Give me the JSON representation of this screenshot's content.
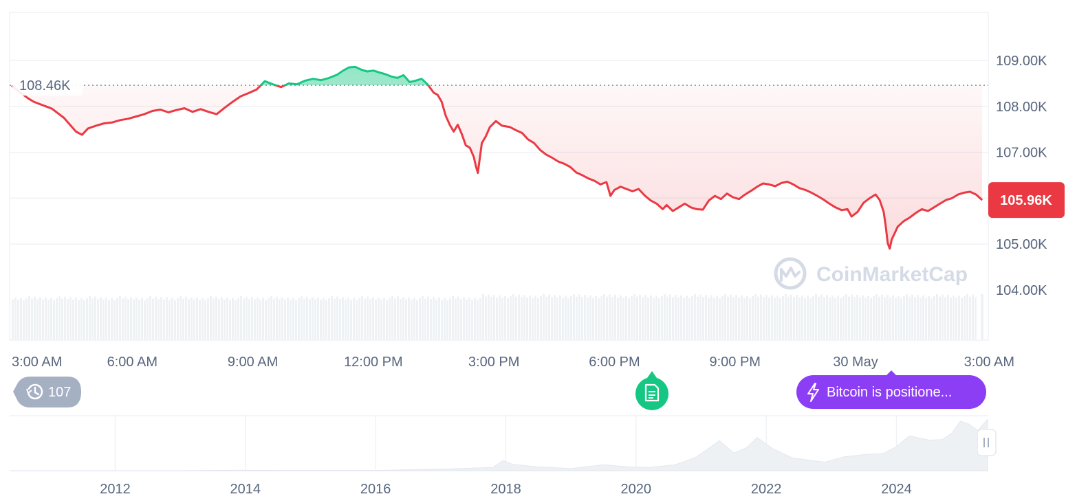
{
  "chart_data": {
    "type": "line",
    "y_axis": {
      "ticks": [
        "109.00K",
        "108.00K",
        "107.00K",
        "106.00K",
        "105.00K",
        "104.00K"
      ],
      "tick_values": [
        109000,
        108000,
        107000,
        106000,
        105000,
        104000
      ],
      "range": [
        103000,
        110000
      ],
      "position": "right"
    },
    "x_axis": {
      "ticks": [
        "3:00 AM",
        "6:00 AM",
        "9:00 AM",
        "12:00 PM",
        "3:00 PM",
        "6:00 PM",
        "9:00 PM",
        "30 May",
        "3:00 AM"
      ],
      "tick_hours": [
        0,
        3,
        6,
        9,
        12,
        15,
        18,
        21,
        24
      ],
      "range_hours": [
        0,
        24.2
      ]
    },
    "reference": {
      "label": "108.46K",
      "value": 108460
    },
    "current": {
      "label": "105.96K",
      "value": 105960
    },
    "colors": {
      "up": "#16c784",
      "down": "#ea3943",
      "grid": "#eff2f5",
      "volume": "#eff2f5",
      "history_badge": "#a6b0c3",
      "news_badge": "#16c784",
      "alert_pill": "#8c3ef5",
      "current_badge": "#ea3943"
    },
    "series": [
      {
        "points": [
          [
            0,
            108450
          ],
          [
            0.1,
            108380
          ],
          [
            0.25,
            108280
          ],
          [
            0.4,
            108180
          ],
          [
            0.55,
            108100
          ],
          [
            0.7,
            108050
          ],
          [
            0.85,
            108000
          ],
          [
            1.0,
            107950
          ],
          [
            1.15,
            107850
          ],
          [
            1.3,
            107750
          ],
          [
            1.45,
            107600
          ],
          [
            1.6,
            107450
          ],
          [
            1.75,
            107380
          ],
          [
            1.9,
            107520
          ],
          [
            2.1,
            107580
          ],
          [
            2.3,
            107630
          ],
          [
            2.5,
            107650
          ],
          [
            2.7,
            107700
          ],
          [
            2.9,
            107730
          ],
          [
            3.1,
            107780
          ],
          [
            3.3,
            107830
          ],
          [
            3.5,
            107900
          ],
          [
            3.7,
            107930
          ],
          [
            3.9,
            107870
          ],
          [
            4.1,
            107920
          ],
          [
            4.3,
            107960
          ],
          [
            4.5,
            107880
          ],
          [
            4.7,
            107940
          ],
          [
            4.9,
            107880
          ],
          [
            5.1,
            107830
          ],
          [
            5.3,
            107970
          ],
          [
            5.5,
            108100
          ],
          [
            5.7,
            108220
          ],
          [
            5.9,
            108290
          ],
          [
            6.1,
            108370
          ],
          [
            6.3,
            108550
          ],
          [
            6.5,
            108480
          ],
          [
            6.7,
            108420
          ],
          [
            6.9,
            108500
          ],
          [
            7.1,
            108480
          ],
          [
            7.3,
            108560
          ],
          [
            7.5,
            108600
          ],
          [
            7.7,
            108570
          ],
          [
            7.9,
            108620
          ],
          [
            8.1,
            108690
          ],
          [
            8.25,
            108780
          ],
          [
            8.4,
            108850
          ],
          [
            8.55,
            108860
          ],
          [
            8.7,
            108800
          ],
          [
            8.85,
            108760
          ],
          [
            9.0,
            108780
          ],
          [
            9.15,
            108740
          ],
          [
            9.3,
            108700
          ],
          [
            9.45,
            108650
          ],
          [
            9.6,
            108620
          ],
          [
            9.75,
            108680
          ],
          [
            9.9,
            108530
          ],
          [
            10.05,
            108560
          ],
          [
            10.2,
            108600
          ],
          [
            10.35,
            108480
          ],
          [
            10.5,
            108300
          ],
          [
            10.6,
            108250
          ],
          [
            10.7,
            108100
          ],
          [
            10.8,
            107800
          ],
          [
            10.9,
            107600
          ],
          [
            11.0,
            107450
          ],
          [
            11.1,
            107600
          ],
          [
            11.2,
            107400
          ],
          [
            11.3,
            107150
          ],
          [
            11.4,
            107100
          ],
          [
            11.5,
            106900
          ],
          [
            11.55,
            106700
          ],
          [
            11.6,
            106550
          ],
          [
            11.7,
            107200
          ],
          [
            11.8,
            107350
          ],
          [
            11.9,
            107550
          ],
          [
            12.05,
            107680
          ],
          [
            12.2,
            107580
          ],
          [
            12.4,
            107550
          ],
          [
            12.55,
            107480
          ],
          [
            12.7,
            107420
          ],
          [
            12.85,
            107280
          ],
          [
            13.0,
            107200
          ],
          [
            13.15,
            107050
          ],
          [
            13.3,
            106950
          ],
          [
            13.45,
            106880
          ],
          [
            13.6,
            106800
          ],
          [
            13.75,
            106750
          ],
          [
            13.9,
            106680
          ],
          [
            14.05,
            106560
          ],
          [
            14.2,
            106500
          ],
          [
            14.35,
            106430
          ],
          [
            14.5,
            106380
          ],
          [
            14.65,
            106300
          ],
          [
            14.8,
            106350
          ],
          [
            14.9,
            106050
          ],
          [
            15.0,
            106180
          ],
          [
            15.15,
            106250
          ],
          [
            15.3,
            106200
          ],
          [
            15.45,
            106150
          ],
          [
            15.6,
            106200
          ],
          [
            15.75,
            106060
          ],
          [
            15.9,
            105950
          ],
          [
            16.05,
            105880
          ],
          [
            16.2,
            105760
          ],
          [
            16.3,
            105850
          ],
          [
            16.45,
            105720
          ],
          [
            16.6,
            105800
          ],
          [
            16.75,
            105880
          ],
          [
            16.9,
            105800
          ],
          [
            17.05,
            105760
          ],
          [
            17.2,
            105750
          ],
          [
            17.35,
            105950
          ],
          [
            17.5,
            106050
          ],
          [
            17.65,
            105980
          ],
          [
            17.8,
            106100
          ],
          [
            17.95,
            106020
          ],
          [
            18.1,
            105980
          ],
          [
            18.25,
            106080
          ],
          [
            18.4,
            106160
          ],
          [
            18.55,
            106250
          ],
          [
            18.7,
            106320
          ],
          [
            18.85,
            106300
          ],
          [
            19.0,
            106260
          ],
          [
            19.15,
            106330
          ],
          [
            19.3,
            106360
          ],
          [
            19.45,
            106300
          ],
          [
            19.6,
            106220
          ],
          [
            19.75,
            106180
          ],
          [
            19.9,
            106120
          ],
          [
            20.05,
            106050
          ],
          [
            20.2,
            105970
          ],
          [
            20.35,
            105880
          ],
          [
            20.5,
            105800
          ],
          [
            20.65,
            105740
          ],
          [
            20.8,
            105760
          ],
          [
            20.9,
            105600
          ],
          [
            21.05,
            105700
          ],
          [
            21.2,
            105900
          ],
          [
            21.35,
            106000
          ],
          [
            21.5,
            106080
          ],
          [
            21.6,
            105960
          ],
          [
            21.7,
            105700
          ],
          [
            21.75,
            105400
          ],
          [
            21.8,
            105020
          ],
          [
            21.85,
            104900
          ],
          [
            21.9,
            105100
          ],
          [
            22.05,
            105380
          ],
          [
            22.2,
            105500
          ],
          [
            22.35,
            105580
          ],
          [
            22.5,
            105680
          ],
          [
            22.65,
            105760
          ],
          [
            22.8,
            105720
          ],
          [
            22.95,
            105800
          ],
          [
            23.1,
            105880
          ],
          [
            23.25,
            105960
          ],
          [
            23.4,
            106000
          ],
          [
            23.55,
            106080
          ],
          [
            23.7,
            106120
          ],
          [
            23.85,
            106140
          ],
          [
            24.0,
            106080
          ],
          [
            24.15,
            105960
          ]
        ]
      }
    ],
    "navigator": {
      "x_ticks": [
        "2012",
        "2014",
        "2016",
        "2018",
        "2020",
        "2022",
        "2024"
      ],
      "tick_years": [
        2012,
        2014,
        2016,
        2018,
        2020,
        2022,
        2024
      ],
      "range_years": [
        2010.4,
        2025.4
      ],
      "points": [
        [
          2010.4,
          0.0
        ],
        [
          2013.0,
          0.0
        ],
        [
          2013.9,
          0.01
        ],
        [
          2014.5,
          0.005
        ],
        [
          2016.0,
          0.005
        ],
        [
          2017.0,
          0.03
        ],
        [
          2017.8,
          0.06
        ],
        [
          2017.96,
          0.19
        ],
        [
          2018.1,
          0.12
        ],
        [
          2018.5,
          0.07
        ],
        [
          2019.0,
          0.04
        ],
        [
          2019.5,
          0.11
        ],
        [
          2019.9,
          0.07
        ],
        [
          2020.2,
          0.06
        ],
        [
          2020.6,
          0.11
        ],
        [
          2020.9,
          0.24
        ],
        [
          2021.1,
          0.4
        ],
        [
          2021.28,
          0.56
        ],
        [
          2021.5,
          0.33
        ],
        [
          2021.7,
          0.43
        ],
        [
          2021.86,
          0.62
        ],
        [
          2022.1,
          0.41
        ],
        [
          2022.4,
          0.24
        ],
        [
          2022.7,
          0.19
        ],
        [
          2022.9,
          0.16
        ],
        [
          2023.2,
          0.26
        ],
        [
          2023.5,
          0.3
        ],
        [
          2023.8,
          0.32
        ],
        [
          2024.0,
          0.45
        ],
        [
          2024.2,
          0.65
        ],
        [
          2024.5,
          0.57
        ],
        [
          2024.7,
          0.58
        ],
        [
          2024.85,
          0.7
        ],
        [
          2024.98,
          0.92
        ],
        [
          2025.1,
          0.88
        ],
        [
          2025.25,
          0.75
        ],
        [
          2025.4,
          0.96
        ]
      ]
    }
  },
  "watermark": {
    "text": "CoinMarketCap"
  },
  "history_badge": {
    "icon": "history-icon",
    "count": "107"
  },
  "news_marker": {
    "icon": "document-icon"
  },
  "alert_pill": {
    "icon": "lightning-icon",
    "text": "Bitcoin is positione..."
  },
  "navigator_handle": {
    "icon": "pause-handle-icon"
  }
}
